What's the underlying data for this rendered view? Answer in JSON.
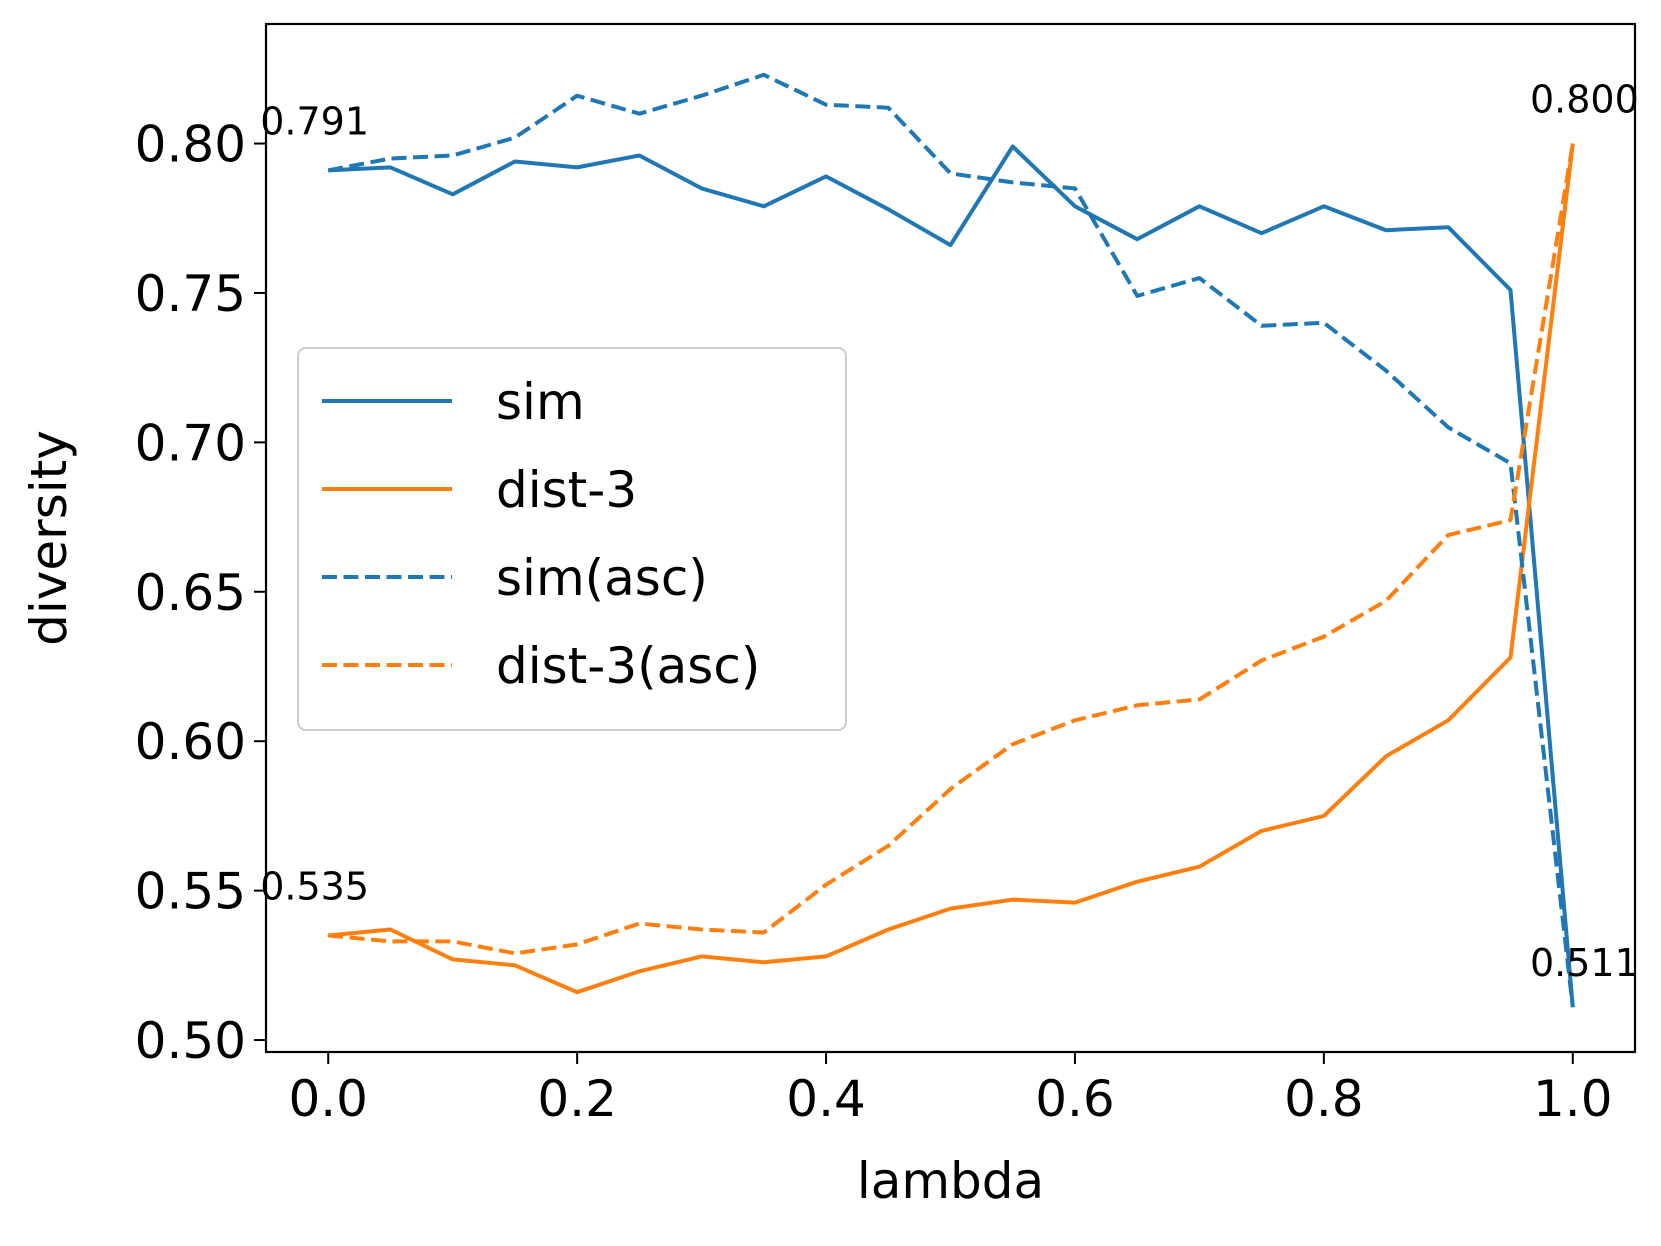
{
  "chart_data": {
    "type": "line",
    "xlabel": "lambda",
    "ylabel": "diversity",
    "xlim": [
      -0.05,
      1.05
    ],
    "ylim": [
      0.496,
      0.84
    ],
    "grid": false,
    "legend_position": "center-left",
    "x": [
      0.0,
      0.05,
      0.1,
      0.15,
      0.2,
      0.25,
      0.3,
      0.35,
      0.4,
      0.45,
      0.5,
      0.55,
      0.6,
      0.65,
      0.7,
      0.75,
      0.8,
      0.85,
      0.9,
      0.95,
      1.0
    ],
    "xticks": [
      {
        "value": 0.0,
        "label": "0.0"
      },
      {
        "value": 0.2,
        "label": "0.2"
      },
      {
        "value": 0.4,
        "label": "0.4"
      },
      {
        "value": 0.6,
        "label": "0.6"
      },
      {
        "value": 0.8,
        "label": "0.8"
      },
      {
        "value": 1.0,
        "label": "1.0"
      }
    ],
    "yticks": [
      {
        "value": 0.5,
        "label": "0.50"
      },
      {
        "value": 0.55,
        "label": "0.55"
      },
      {
        "value": 0.6,
        "label": "0.60"
      },
      {
        "value": 0.65,
        "label": "0.65"
      },
      {
        "value": 0.7,
        "label": "0.70"
      },
      {
        "value": 0.75,
        "label": "0.75"
      },
      {
        "value": 0.8,
        "label": "0.80"
      }
    ],
    "series": [
      {
        "name": "sim",
        "color": "#1f77b4",
        "dash": "solid",
        "values": [
          0.791,
          0.792,
          0.783,
          0.794,
          0.792,
          0.796,
          0.785,
          0.779,
          0.789,
          0.778,
          0.766,
          0.799,
          0.779,
          0.768,
          0.779,
          0.77,
          0.779,
          0.771,
          0.772,
          0.751,
          0.511
        ]
      },
      {
        "name": "dist-3",
        "color": "#ff7f0e",
        "dash": "solid",
        "values": [
          0.535,
          0.537,
          0.527,
          0.525,
          0.516,
          0.523,
          0.528,
          0.526,
          0.528,
          0.537,
          0.544,
          0.547,
          0.546,
          0.553,
          0.558,
          0.57,
          0.575,
          0.595,
          0.607,
          0.628,
          0.8
        ]
      },
      {
        "name": "sim(asc)",
        "color": "#1f77b4",
        "dash": "dashed",
        "values": [
          0.791,
          0.795,
          0.796,
          0.802,
          0.816,
          0.81,
          0.816,
          0.823,
          0.813,
          0.812,
          0.79,
          0.787,
          0.785,
          0.749,
          0.755,
          0.739,
          0.74,
          0.724,
          0.705,
          0.693,
          0.511
        ]
      },
      {
        "name": "dist-3(asc)",
        "color": "#ff7f0e",
        "dash": "dashed",
        "values": [
          0.535,
          0.533,
          0.533,
          0.529,
          0.532,
          0.539,
          0.537,
          0.536,
          0.552,
          0.565,
          0.584,
          0.599,
          0.607,
          0.612,
          0.614,
          0.627,
          0.635,
          0.647,
          0.669,
          0.674,
          0.8
        ]
      }
    ],
    "annotations": [
      {
        "text": "0.791",
        "x": 0.0,
        "y": 0.791,
        "anchor": "start-left"
      },
      {
        "text": "0.535",
        "x": 0.0,
        "y": 0.535,
        "anchor": "start-left"
      },
      {
        "text": "0.800",
        "x": 1.0,
        "y": 0.8,
        "anchor": "end-right"
      },
      {
        "text": "0.511",
        "x": 1.0,
        "y": 0.511,
        "anchor": "end-right"
      }
    ]
  }
}
